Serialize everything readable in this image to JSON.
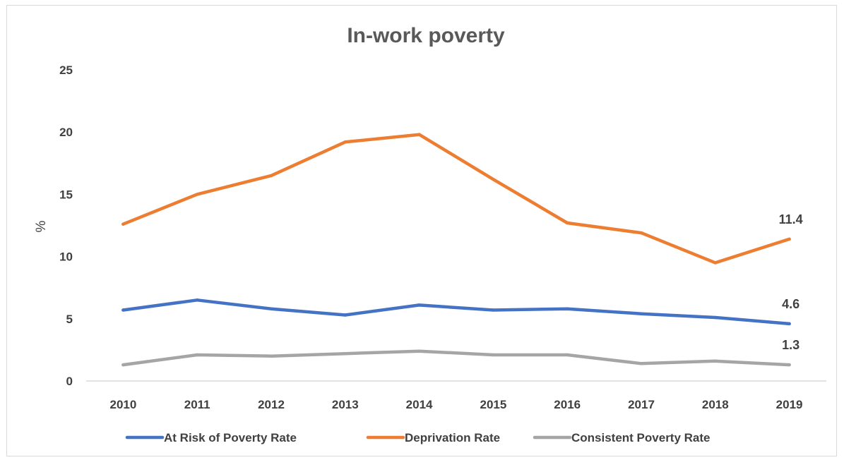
{
  "chart_data": {
    "type": "line",
    "title": "In-work poverty",
    "xlabel": "",
    "ylabel": "%",
    "ylim": [
      0,
      25
    ],
    "yticks": [
      "0",
      "5",
      "10",
      "15",
      "20",
      "25"
    ],
    "categories": [
      "2010",
      "2011",
      "2012",
      "2013",
      "2014",
      "2015",
      "2016",
      "2017",
      "2018",
      "2019"
    ],
    "grid": false,
    "legend_position": "bottom",
    "series": [
      {
        "name": "At Risk of Poverty Rate",
        "color": "#4472c4",
        "values": [
          5.7,
          6.5,
          5.8,
          5.3,
          6.1,
          5.7,
          5.8,
          5.4,
          5.1,
          4.6
        ],
        "end_label": "4.6"
      },
      {
        "name": "Deprivation Rate",
        "color": "#ed7d31",
        "values": [
          12.6,
          15.0,
          16.5,
          19.2,
          19.8,
          16.2,
          12.7,
          11.9,
          9.5,
          11.4
        ],
        "end_label": "11.4"
      },
      {
        "name": "Consistent Poverty Rate",
        "color": "#a5a5a5",
        "values": [
          1.3,
          2.1,
          2.0,
          2.2,
          2.4,
          2.1,
          2.1,
          1.4,
          1.6,
          1.3
        ],
        "end_label": "1.3"
      }
    ],
    "axis_color": "#d9d9d9"
  }
}
